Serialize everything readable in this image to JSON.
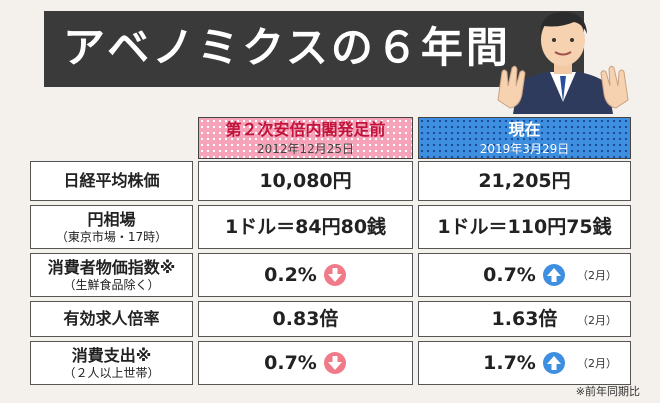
{
  "title": "アベノミクスの６年間",
  "columns": [
    {
      "name": "第２次安倍内閣発足前",
      "date": "2012年12月25日"
    },
    {
      "name": "現在",
      "date": "2019年3月29日"
    }
  ],
  "rows": [
    {
      "label": "日経平均株価",
      "sub": "",
      "before": "10,080円",
      "after": "21,205円",
      "arrow_before": "",
      "arrow_after": "",
      "note": ""
    },
    {
      "label": "円相場",
      "sub": "（東京市場・17時）",
      "before": "1ドル＝84円80銭",
      "after": "1ドル＝110円75銭",
      "arrow_before": "",
      "arrow_after": "",
      "note": ""
    },
    {
      "label": "消費者物価指数※",
      "sub": "（生鮮食品除く）",
      "before": "0.2%",
      "after": "0.7%",
      "arrow_before": "down",
      "arrow_after": "up",
      "note": "（2月）"
    },
    {
      "label": "有効求人倍率",
      "sub": "",
      "before": "0.83倍",
      "after": "1.63倍",
      "arrow_before": "",
      "arrow_after": "",
      "note": "（2月）"
    },
    {
      "label": "消費支出※",
      "sub": "（２人以上世帯）",
      "before": "0.7%",
      "after": "1.7%",
      "arrow_before": "down",
      "arrow_after": "up",
      "note": "（2月）"
    }
  ],
  "footnote": "※前年同期比",
  "colors": {
    "header_pink": "#f6a2b8",
    "header_blue": "#3e8fe0",
    "arrow_down": "#f07a88",
    "arrow_up": "#3f8fe0"
  }
}
